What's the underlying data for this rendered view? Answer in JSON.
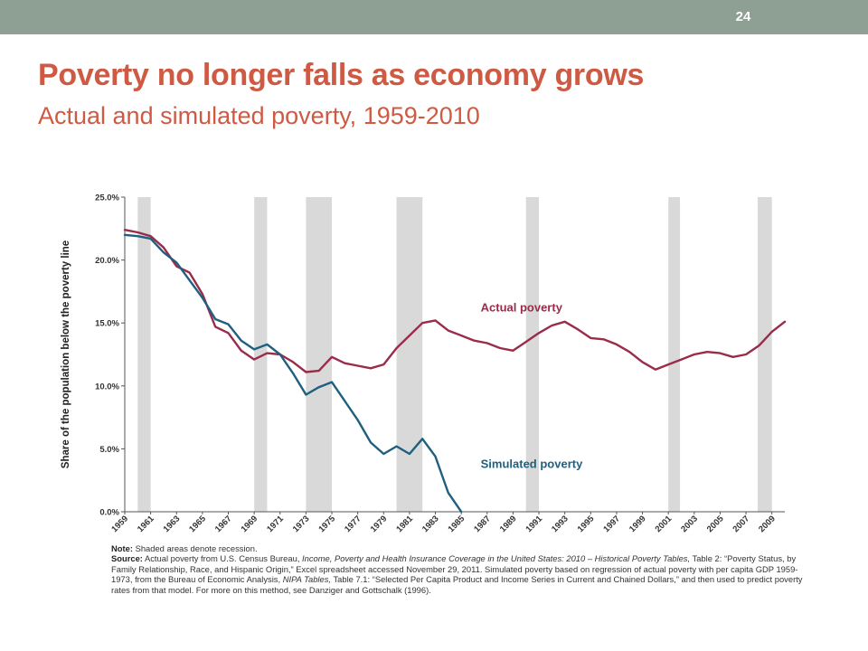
{
  "slide": {
    "number": "24",
    "title": "Poverty no longer falls as economy grows",
    "subtitle": "Actual and simulated poverty, 1959-2010"
  },
  "colors": {
    "topbar": "#8e9f93",
    "title": "#cf5a43",
    "actual": "#9a2c4a",
    "simulated": "#1f5f7f",
    "recession": "#d9d9d9"
  },
  "chart_data": {
    "type": "line",
    "ylabel": "Share of the population below the poverty line",
    "xlabel": "",
    "xlim": [
      1959,
      2010
    ],
    "ylim": [
      0,
      25
    ],
    "y_ticks": [
      "0.0%",
      "5.0%",
      "10.0%",
      "15.0%",
      "20.0%",
      "25.0%"
    ],
    "x_ticks": [
      "1959",
      "1961",
      "1963",
      "1965",
      "1967",
      "1969",
      "1971",
      "1973",
      "1975",
      "1977",
      "1979",
      "1981",
      "1983",
      "1985",
      "1987",
      "1989",
      "1991",
      "1993",
      "1995",
      "1997",
      "1999",
      "2001",
      "2003",
      "2005",
      "2007",
      "2009"
    ],
    "recessions": [
      [
        1960,
        1961
      ],
      [
        1969,
        1970
      ],
      [
        1973,
        1975
      ],
      [
        1980,
        1982
      ],
      [
        1990,
        1991
      ],
      [
        2001,
        2001.9
      ],
      [
        2007.9,
        2009
      ]
    ],
    "series": [
      {
        "name": "Actual poverty",
        "color": "#9a2c4a",
        "x": [
          1959,
          1960,
          1961,
          1962,
          1963,
          1964,
          1965,
          1966,
          1967,
          1968,
          1969,
          1970,
          1971,
          1972,
          1973,
          1974,
          1975,
          1976,
          1977,
          1978,
          1979,
          1980,
          1981,
          1982,
          1983,
          1984,
          1985,
          1986,
          1987,
          1988,
          1989,
          1990,
          1991,
          1992,
          1993,
          1994,
          1995,
          1996,
          1997,
          1998,
          1999,
          2000,
          2001,
          2002,
          2003,
          2004,
          2005,
          2006,
          2007,
          2008,
          2009,
          2010
        ],
        "values": [
          22.4,
          22.2,
          21.9,
          21.0,
          19.5,
          19.0,
          17.3,
          14.7,
          14.2,
          12.8,
          12.1,
          12.6,
          12.5,
          11.9,
          11.1,
          11.2,
          12.3,
          11.8,
          11.6,
          11.4,
          11.7,
          13.0,
          14.0,
          15.0,
          15.2,
          14.4,
          14.0,
          13.6,
          13.4,
          13.0,
          12.8,
          13.5,
          14.2,
          14.8,
          15.1,
          14.5,
          13.8,
          13.7,
          13.3,
          12.7,
          11.9,
          11.3,
          11.7,
          12.1,
          12.5,
          12.7,
          12.6,
          12.3,
          12.5,
          13.2,
          14.3,
          15.1
        ]
      },
      {
        "name": "Simulated poverty",
        "color": "#1f5f7f",
        "x": [
          1959,
          1960,
          1961,
          1962,
          1963,
          1964,
          1965,
          1966,
          1967,
          1968,
          1969,
          1970,
          1971,
          1972,
          1973,
          1974,
          1975,
          1976,
          1977,
          1978,
          1979,
          1980,
          1981,
          1982,
          1983,
          1984,
          1985
        ],
        "values": [
          22.0,
          21.9,
          21.7,
          20.6,
          19.8,
          18.4,
          17.0,
          15.3,
          14.9,
          13.6,
          12.9,
          13.3,
          12.5,
          11.0,
          9.3,
          9.9,
          10.3,
          8.8,
          7.3,
          5.5,
          4.6,
          5.2,
          4.6,
          5.8,
          4.4,
          1.5,
          0.0
        ]
      }
    ],
    "annotations": [
      {
        "text": "Actual poverty",
        "x": 1986.5,
        "y": 15.9,
        "series": 0
      },
      {
        "text": "Simulated poverty",
        "x": 1986.5,
        "y": 3.5,
        "series": 1
      }
    ]
  },
  "notes": {
    "note_label": "Note:",
    "note_text": " Shaded areas denote recession.",
    "source_label": "Source:",
    "source_part1": " Actual poverty from U.S. Census Bureau, ",
    "source_italic1": "Income, Poverty and Health Insurance Coverage in the United States: 2010 – Historical Poverty Tables,",
    "source_part2": " Table 2: “Poverty Status, by Family Relationship, Race, and Hispanic Origin,” Excel spreadsheet accessed November 29, 2011. Simulated poverty based on regression of actual poverty with per capita GDP 1959-1973, from the Bureau of Economic Analysis, ",
    "source_italic2": "NIPA Tables,",
    "source_part3": " Table 7.1: “Selected Per Capita Product and Income Series in Current and Chained Dollars,” and then used to predict poverty rates from that model. For more on this method, see Danziger and Gottschalk (1996)."
  }
}
